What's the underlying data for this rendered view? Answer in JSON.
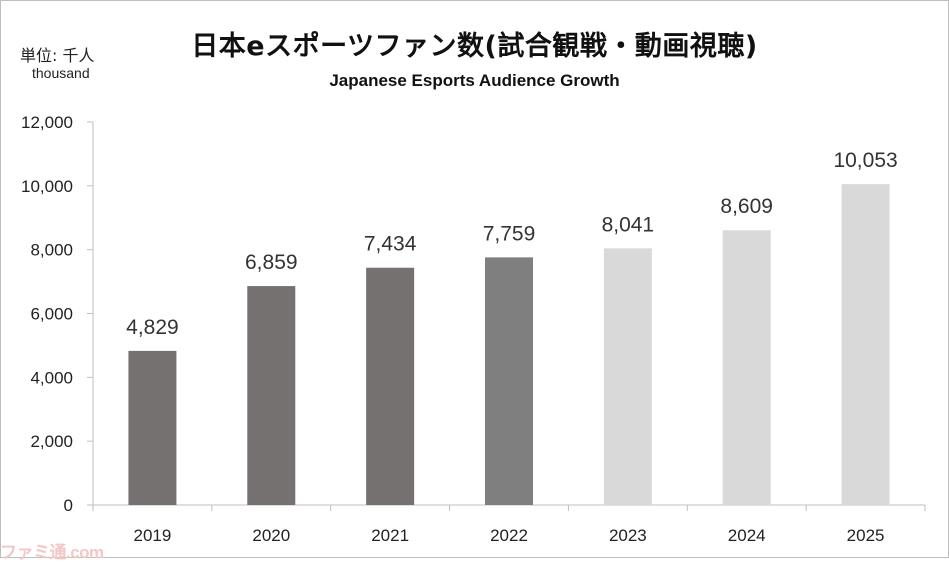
{
  "chart_data": {
    "type": "bar",
    "title": "日本eスポーツファン数(試合観戦・動画視聴)",
    "subtitle": "Japanese Esports Audience Growth",
    "unit_label": "単位: 千人",
    "unit_label_en": "thousand",
    "xlabel": "",
    "ylabel": "",
    "ylim": [
      0,
      12000
    ],
    "yticks": [
      0,
      2000,
      4000,
      6000,
      8000,
      10000,
      12000
    ],
    "ytick_labels": [
      "0",
      "2,000",
      "4,000",
      "6,000",
      "8,000",
      "10,000",
      "12,000"
    ],
    "categories": [
      "2019",
      "2020",
      "2021",
      "2022",
      "2023",
      "2024",
      "2025"
    ],
    "values": [
      4829,
      6859,
      7434,
      7759,
      8041,
      8609,
      10053
    ],
    "value_labels": [
      "4,829",
      "6,859",
      "7,434",
      "7,759",
      "8,041",
      "8,609",
      "10,053"
    ],
    "bar_colors": [
      "#757171",
      "#757171",
      "#757171",
      "#7f7f7f",
      "#d9d9d9",
      "#d9d9d9",
      "#d9d9d9"
    ],
    "grid": false
  },
  "watermark": "ファミ通.com",
  "colors": {
    "axis": "#bfbfbf",
    "text": "#222222",
    "watermark": "#f3c7c7"
  }
}
